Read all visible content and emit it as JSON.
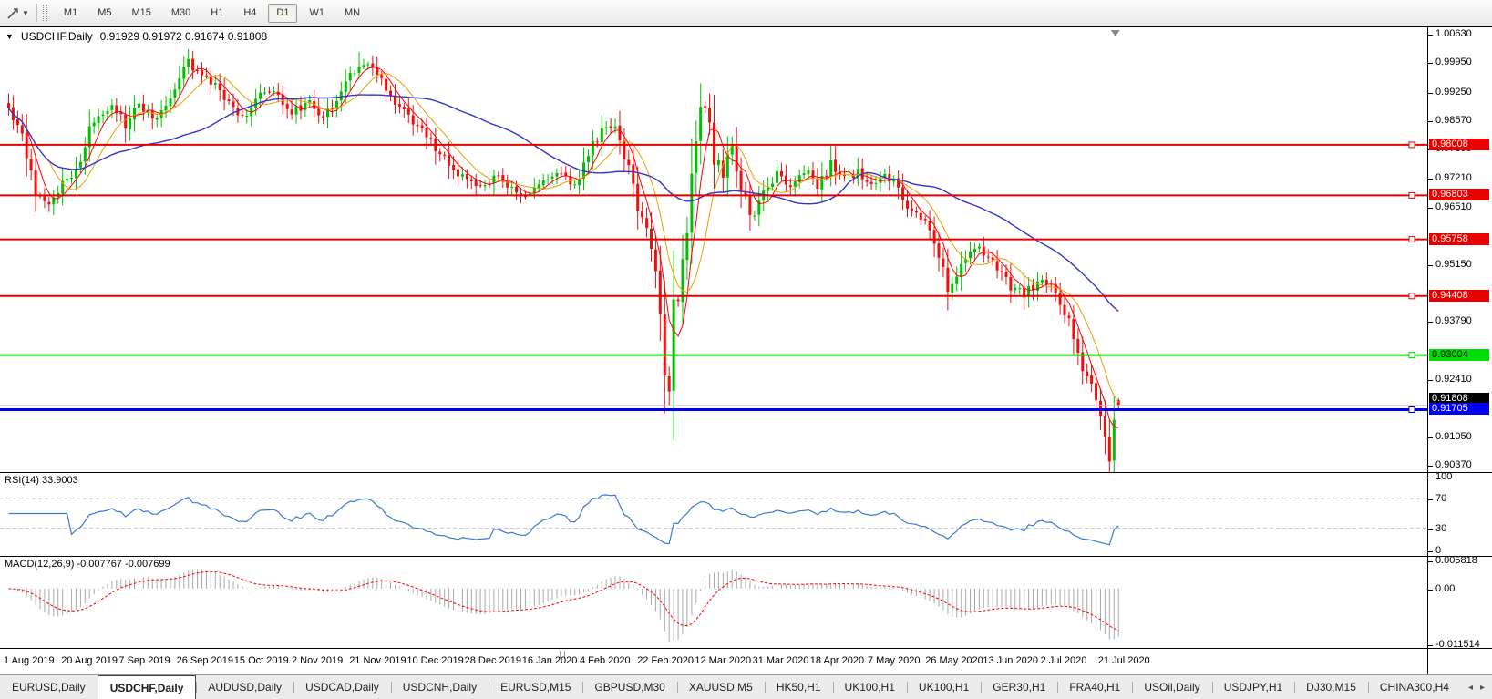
{
  "toolbar": {
    "timeframes": [
      "M1",
      "M5",
      "M15",
      "M30",
      "H1",
      "H4",
      "D1",
      "W1",
      "MN"
    ],
    "active_timeframe": "D1"
  },
  "chart": {
    "title_marker": "▼",
    "symbol": "USDCHF,Daily",
    "ohlc_text": "0.91929 0.91972 0.91674 0.91808"
  },
  "chart_data": {
    "type": "candlestick",
    "symbol": "USDCHF",
    "timeframe": "Daily",
    "title": "USDCHF,Daily",
    "last_bar_ohlc": {
      "open": 0.91929,
      "high": 0.91972,
      "low": 0.91674,
      "close": 0.91808
    },
    "y_axis": {
      "min": 0.9037,
      "max": 1.0063,
      "ticks": [
        1.0063,
        0.9995,
        0.9925,
        0.9857,
        0.9789,
        0.9721,
        0.9651,
        0.9515,
        0.9379,
        0.9241,
        0.9105,
        0.9037
      ]
    },
    "x_labels": [
      "1 Aug 2019",
      "20 Aug 2019",
      "7 Sep 2019",
      "26 Sep 2019",
      "15 Oct 2019",
      "2 Nov 2019",
      "21 Nov 2019",
      "10 Dec 2019",
      "28 Dec 2019",
      "16 Jan 2020",
      "4 Feb 2020",
      "22 Feb 2020",
      "12 Mar 2020",
      "31 Mar 2020",
      "18 Apr 2020",
      "7 May 2020",
      "26 May 2020",
      "13 Jun 2020",
      "2 Jul 2020",
      "21 Jul 2020"
    ],
    "bars_total": 248,
    "price_path": [
      [
        0,
        0.9885
      ],
      [
        3,
        0.9832
      ],
      [
        6,
        0.97
      ],
      [
        9,
        0.966
      ],
      [
        13,
        0.9718
      ],
      [
        16,
        0.9762
      ],
      [
        19,
        0.986
      ],
      [
        23,
        0.99
      ],
      [
        26,
        0.9845
      ],
      [
        29,
        0.9895
      ],
      [
        33,
        0.986
      ],
      [
        37,
        0.9935
      ],
      [
        40,
        0.9998
      ],
      [
        43,
        0.9965
      ],
      [
        46,
        0.994
      ],
      [
        49,
        0.99
      ],
      [
        52,
        0.9868
      ],
      [
        56,
        0.992
      ],
      [
        59,
        0.9925
      ],
      [
        63,
        0.988
      ],
      [
        67,
        0.99
      ],
      [
        70,
        0.9868
      ],
      [
        74,
        0.993
      ],
      [
        78,
        0.9996
      ],
      [
        81,
        0.9982
      ],
      [
        84,
        0.993
      ],
      [
        87,
        0.989
      ],
      [
        90,
        0.9855
      ],
      [
        93,
        0.982
      ],
      [
        96,
        0.978
      ],
      [
        99,
        0.974
      ],
      [
        102,
        0.9715
      ],
      [
        105,
        0.97
      ],
      [
        109,
        0.9725
      ],
      [
        112,
        0.9695
      ],
      [
        115,
        0.9672
      ],
      [
        118,
        0.9705
      ],
      [
        122,
        0.9735
      ],
      [
        126,
        0.9705
      ],
      [
        129,
        0.978
      ],
      [
        132,
        0.9835
      ],
      [
        135,
        0.9845
      ],
      [
        137,
        0.978
      ],
      [
        140,
        0.966
      ],
      [
        143,
        0.956
      ],
      [
        145,
        0.943
      ],
      [
        147,
        0.919
      ],
      [
        148,
        0.939
      ],
      [
        150,
        0.952
      ],
      [
        151,
        0.961
      ],
      [
        152,
        0.977
      ],
      [
        154,
        0.987
      ],
      [
        155,
        0.9885
      ],
      [
        157,
        0.978
      ],
      [
        159,
        0.972
      ],
      [
        161,
        0.9795
      ],
      [
        163,
        0.97
      ],
      [
        165,
        0.9625
      ],
      [
        168,
        0.968
      ],
      [
        171,
        0.9735
      ],
      [
        174,
        0.97
      ],
      [
        177,
        0.9745
      ],
      [
        180,
        0.97
      ],
      [
        183,
        0.9755
      ],
      [
        186,
        0.9715
      ],
      [
        189,
        0.9735
      ],
      [
        192,
        0.9705
      ],
      [
        195,
        0.9725
      ],
      [
        198,
        0.9705
      ],
      [
        201,
        0.964
      ],
      [
        204,
        0.9615
      ],
      [
        206,
        0.9575
      ],
      [
        209,
        0.9455
      ],
      [
        211,
        0.95
      ],
      [
        213,
        0.9535
      ],
      [
        216,
        0.956
      ],
      [
        220,
        0.951
      ],
      [
        223,
        0.9465
      ],
      [
        226,
        0.9445
      ],
      [
        229,
        0.9475
      ],
      [
        232,
        0.947
      ],
      [
        234,
        0.943
      ],
      [
        236,
        0.938
      ],
      [
        238,
        0.931
      ],
      [
        240,
        0.925
      ],
      [
        242,
        0.9195
      ],
      [
        243,
        0.913
      ],
      [
        244,
        0.908
      ],
      [
        245,
        0.906
      ],
      [
        246,
        0.9125
      ],
      [
        247,
        0.91808
      ]
    ],
    "wick_overrides": {
      "high": [
        [
          40,
          1.0026
        ],
        [
          78,
          1.0022
        ],
        [
          135,
          0.9852
        ],
        [
          155,
          0.99
        ]
      ],
      "low": [
        [
          9,
          0.9659
        ],
        [
          147,
          0.9182
        ],
        [
          245,
          0.9037
        ]
      ]
    },
    "candle_up_color": "#00c000",
    "candle_down_color": "#ee0f0f",
    "moving_averages": [
      {
        "period": 5,
        "color": "#ff0000",
        "width": 1
      },
      {
        "period": 10,
        "color": "#e8a000",
        "width": 1
      },
      {
        "period": 40,
        "color": "#3038c8",
        "width": 1.4
      }
    ],
    "levels": [
      {
        "price": 0.98008,
        "label": "0.98008",
        "color": "#e60000",
        "width": 2,
        "badge_bg": "#e60000",
        "text_color": "#ffffff",
        "name": "resistance-line-1",
        "handle": true,
        "z": 2
      },
      {
        "price": 0.96803,
        "label": "0.96803",
        "color": "#e60000",
        "width": 2,
        "badge_bg": "#e60000",
        "text_color": "#ffffff",
        "name": "resistance-line-2",
        "handle": true,
        "z": 2
      },
      {
        "price": 0.95758,
        "label": "0.95758",
        "color": "#e60000",
        "width": 2,
        "badge_bg": "#e60000",
        "text_color": "#ffffff",
        "name": "resistance-line-3",
        "handle": true,
        "z": 2
      },
      {
        "price": 0.94408,
        "label": "0.94408",
        "color": "#e60000",
        "width": 2,
        "badge_bg": "#e60000",
        "text_color": "#ffffff",
        "name": "resistance-line-4",
        "handle": true,
        "z": 2
      },
      {
        "price": 0.93004,
        "label": "0.93004",
        "color": "#00dd00",
        "width": 2,
        "badge_bg": "#00dd00",
        "text_color": "#000000",
        "name": "support-line-green",
        "handle": true,
        "z": 2
      },
      {
        "price": 0.91808,
        "label": "0.91808",
        "color": "#c8c8c8",
        "width": 1,
        "badge_bg": "#000000",
        "text_color": "#ffffff",
        "name": "current-price-line",
        "handle": false,
        "badge_dy": -7,
        "z": 1
      },
      {
        "price": 0.91705,
        "label": "0.91705",
        "color": "#0000ee",
        "width": 3,
        "badge_bg": "#0000ee",
        "text_color": "#ffffff",
        "name": "support-line-blue",
        "handle": true,
        "z": 3
      }
    ]
  },
  "rsi": {
    "label": "RSI(14) 33.9003",
    "period": 14,
    "value": 33.9003,
    "axis_ticks": [
      100,
      70,
      30,
      0
    ],
    "guide_levels": [
      70,
      30
    ],
    "line_color": "#3d79d0"
  },
  "macd": {
    "label": "MACD(12,26,9) -0.007767 -0.007699",
    "fast": 12,
    "slow": 26,
    "signal": 9,
    "main_value": -0.007767,
    "signal_value": -0.007699,
    "axis_ticks": [
      "0.005818",
      "0.00",
      "-0.011514"
    ],
    "range": {
      "max": 0.005818,
      "min": -0.011514
    },
    "histogram_color": "#a8a8a8",
    "signal_color": "#ff0000"
  },
  "tabs": {
    "items": [
      "EURUSD,Daily",
      "USDCHF,Daily",
      "AUDUSD,Daily",
      "USDCAD,Daily",
      "USDCNH,Daily",
      "EURUSD,M15",
      "GBPUSD,M30",
      "XAUUSD,M5",
      "HK50,H1",
      "UK100,H1",
      "UK100,H1",
      "GER30,H1",
      "FRA40,H1",
      "USOil,Daily",
      "USDJPY,H1",
      "DJ30,M15",
      "CHINA300,H4"
    ],
    "active": "USDCHF,Daily",
    "nav_left": "◂",
    "nav_right": "▸"
  }
}
